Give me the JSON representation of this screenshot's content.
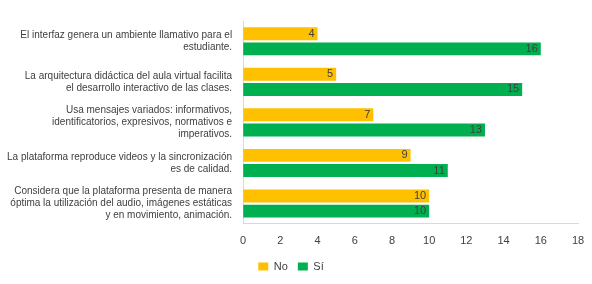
{
  "chart_data": {
    "type": "bar",
    "orientation": "horizontal",
    "categories": [
      "El interfaz genera un ambiente llamativo para el estudiante.",
      "La arquitectura didáctica del aula virtual facilita el desarrollo interactivo de las clases.",
      "Usa mensajes variados: informativos, identificatorios, expresivos, normativos e imperativos.",
      "La plataforma reproduce videos y la sincronización es de calidad.",
      "Considera que la plataforma presenta de manera óptima la utilización del audio, imágenes estáticas y en movimiento, animación."
    ],
    "series": [
      {
        "name": "No",
        "color": "#ffc000",
        "values": [
          4,
          5,
          7,
          9,
          10
        ]
      },
      {
        "name": "Sí",
        "color": "#00b050",
        "values": [
          16,
          15,
          13,
          11,
          10
        ]
      }
    ],
    "xlim": [
      0,
      18
    ],
    "xticks": [
      0,
      2,
      4,
      6,
      8,
      10,
      12,
      14,
      16,
      18
    ],
    "grid": false,
    "legend": "bottom",
    "data_labels": true
  }
}
